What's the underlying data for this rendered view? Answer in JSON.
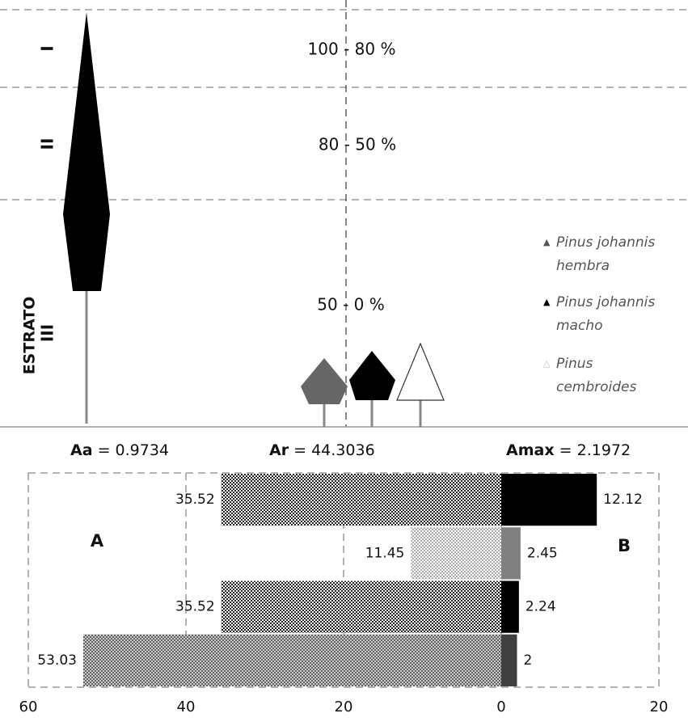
{
  "diagram": {
    "axis_label": "ESTRATO",
    "strata": [
      {
        "numeral": "I",
        "range": "100 - 80 %"
      },
      {
        "numeral": "II",
        "range": "80 - 50 %"
      },
      {
        "numeral": "III",
        "range": "50 - 0 %"
      }
    ],
    "legend": [
      "Pinus johannis hembra",
      "Pinus johannis macho",
      "Pinus cembroides"
    ]
  },
  "indices": [
    {
      "name": "Aa",
      "value": "= 0.9734"
    },
    {
      "name": "Ar",
      "value": "= 44.3036"
    },
    {
      "name": "Amax",
      "value": "= 2.1972"
    }
  ],
  "chart_data": {
    "type": "bar",
    "orientation": "horizontal",
    "series": [
      {
        "name": "A",
        "colors": [
          "#222222",
          "#aaaaaa",
          "#222222",
          "#555555"
        ],
        "values": [
          -35.52,
          -11.45,
          -35.52,
          -53.03
        ],
        "value_labels": [
          "35.52",
          "11.45",
          "35.52",
          "53.03"
        ]
      },
      {
        "name": "B",
        "colors": [
          "#000000",
          "#808080",
          "#000000",
          "#404040"
        ],
        "values": [
          12.12,
          2.45,
          2.24,
          2
        ]
      }
    ],
    "xlim": [
      -60,
      20
    ],
    "xticks": [
      {
        "value": -60,
        "label": "60"
      },
      {
        "value": -40,
        "label": "40"
      },
      {
        "value": -20,
        "label": "20"
      },
      0,
      20
    ],
    "grid": true
  }
}
